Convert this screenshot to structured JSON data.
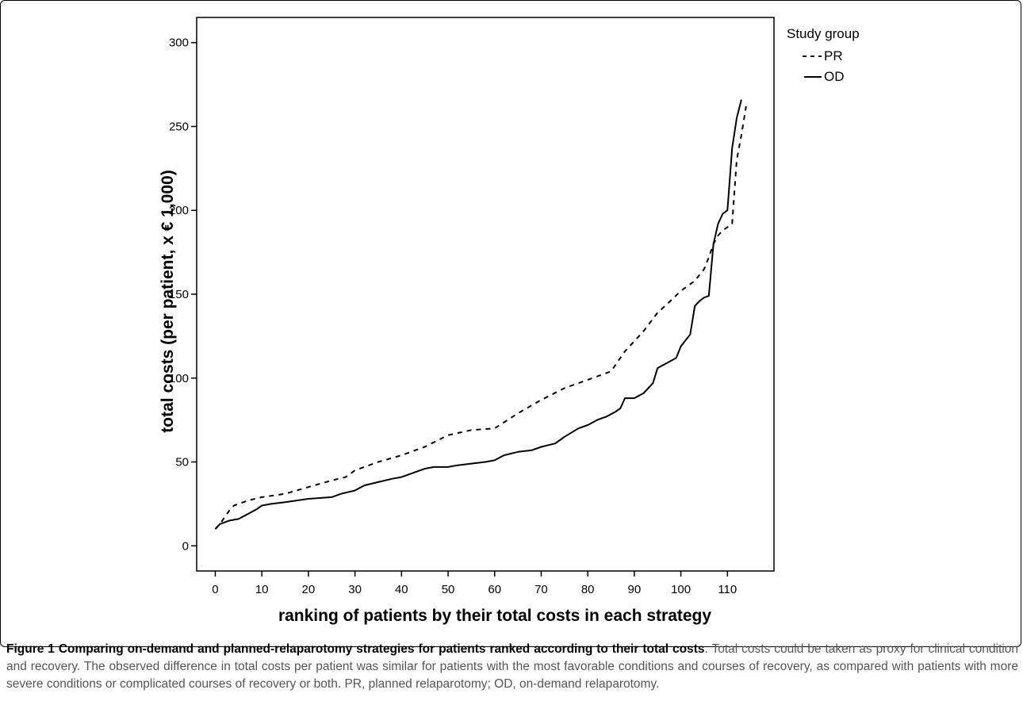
{
  "chart_data": {
    "type": "line",
    "title": "",
    "xlabel": "ranking of patients by their total costs in each strategy",
    "ylabel": "total costs (per patient, x € 1,000)",
    "xlim": [
      -4,
      120
    ],
    "ylim": [
      -15,
      315
    ],
    "xticks": [
      0,
      10,
      20,
      30,
      40,
      50,
      60,
      70,
      80,
      90,
      100,
      110
    ],
    "yticks": [
      0,
      50,
      100,
      150,
      200,
      250,
      300
    ],
    "grid": false,
    "legend": {
      "title": "Study group",
      "position": "top-right"
    },
    "series": [
      {
        "name": "PR",
        "style": "dashed",
        "color": "#000000",
        "x": [
          0,
          1,
          2,
          3,
          4,
          5,
          7,
          10,
          15,
          20,
          25,
          28,
          30,
          35,
          40,
          45,
          50,
          55,
          60,
          65,
          70,
          75,
          80,
          85,
          88,
          90,
          92,
          95,
          97,
          100,
          103,
          105,
          106,
          107,
          108,
          109,
          110,
          111,
          112,
          113,
          114
        ],
        "y": [
          10,
          13,
          17,
          21,
          24,
          25,
          27,
          29,
          31,
          35,
          39,
          41,
          45,
          50,
          54,
          59,
          66,
          69,
          70,
          79,
          87,
          94,
          99,
          104,
          116,
          122,
          128,
          139,
          144,
          152,
          158,
          165,
          172,
          180,
          185,
          188,
          190,
          192,
          230,
          245,
          262
        ]
      },
      {
        "name": "OD",
        "style": "solid",
        "color": "#000000",
        "x": [
          0,
          1,
          2,
          3,
          5,
          7,
          9,
          10,
          12,
          15,
          20,
          25,
          27,
          30,
          32,
          35,
          38,
          40,
          42,
          45,
          47,
          50,
          52,
          55,
          58,
          60,
          62,
          65,
          68,
          70,
          73,
          75,
          78,
          80,
          82,
          84,
          86,
          87,
          88,
          90,
          92,
          93,
          94,
          95,
          97,
          99,
          100,
          102,
          103,
          104,
          105,
          106,
          107,
          108,
          109,
          110,
          111,
          112,
          113
        ],
        "y": [
          10,
          13,
          14,
          15,
          16,
          19,
          22,
          24,
          25,
          26,
          28,
          29,
          31,
          33,
          36,
          38,
          40,
          41,
          43,
          46,
          47,
          47,
          48,
          49,
          50,
          51,
          54,
          56,
          57,
          59,
          61,
          65,
          70,
          72,
          75,
          77,
          80,
          82,
          88,
          88,
          91,
          94,
          97,
          106,
          109,
          112,
          119,
          126,
          143,
          146,
          148,
          149,
          180,
          192,
          198,
          200,
          237,
          255,
          266
        ]
      }
    ]
  },
  "caption": {
    "label": "Figure 1 Comparing on-demand and planned-relaparotomy strategies for patients ranked according to their total costs",
    "text": ". Total costs could be taken as proxy for clinical condition and recovery. The observed difference in total costs per patient was similar for patients with the most favorable conditions and courses of recovery, as compared with patients with more severe conditions or complicated courses of recovery or both. PR, planned relaparotomy; OD, on-demand relaparotomy."
  }
}
